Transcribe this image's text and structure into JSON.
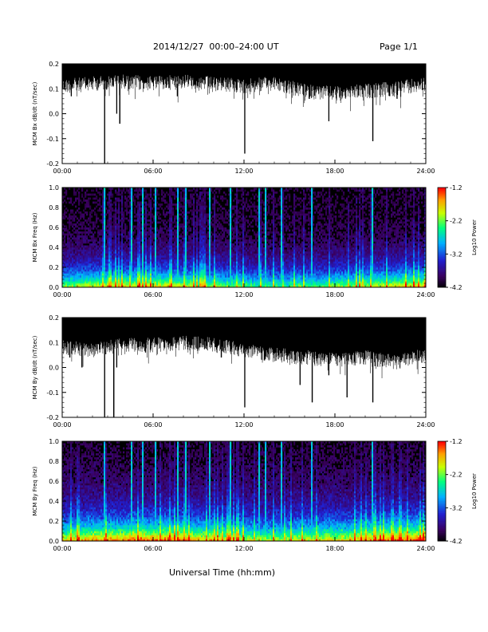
{
  "header": {
    "title": "2014/12/27  00:00–24:00 UT",
    "page": "Page 1/1"
  },
  "footer": {
    "xlabel": "Universal Time (hh:mm)"
  },
  "colors": {
    "trace": "#000000",
    "spectrogram_background": "#000000",
    "colormap": [
      "#000000",
      "#3a0060",
      "#2020d0",
      "#00b0ff",
      "#00ff80",
      "#c8ff00",
      "#ffa000",
      "#ff0000"
    ]
  },
  "chart_data": [
    {
      "type": "line",
      "ylabel": "MCM Bx dB/dt (nT/sec)",
      "xlim": [
        0,
        24
      ],
      "ylim": [
        -0.2,
        0.2
      ],
      "xticks": [
        "00:00",
        "06:00",
        "12:00",
        "18:00",
        "24:00"
      ],
      "yticks": [
        "-0.2",
        "-0.1",
        "0.0",
        "0.1",
        "0.2"
      ],
      "envelope_upper": 0.2,
      "envelope_lower_baseline": [
        [
          0,
          0.14
        ],
        [
          2,
          0.15
        ],
        [
          4,
          0.16
        ],
        [
          6,
          0.15
        ],
        [
          8,
          0.16
        ],
        [
          10,
          0.15
        ],
        [
          12,
          0.14
        ],
        [
          14,
          0.15
        ],
        [
          16,
          0.12
        ],
        [
          18,
          0.11
        ],
        [
          20,
          0.12
        ],
        [
          22,
          0.13
        ],
        [
          24,
          0.15
        ]
      ],
      "spikes": [
        [
          0.6,
          0.07
        ],
        [
          2.8,
          -0.2
        ],
        [
          3.6,
          0.0
        ],
        [
          3.8,
          -0.04
        ],
        [
          7.6,
          0.07
        ],
        [
          12.05,
          -0.16
        ],
        [
          16.3,
          0.06
        ],
        [
          17.6,
          -0.03
        ],
        [
          20.5,
          -0.11
        ],
        [
          22.1,
          0.06
        ]
      ]
    },
    {
      "type": "heatmap",
      "ylabel": "MCM Bx Freq (Hz)",
      "xlim": [
        0,
        24
      ],
      "ylim": [
        0,
        1.0
      ],
      "xticks": [
        "00:00",
        "06:00",
        "12:00",
        "18:00",
        "24:00"
      ],
      "yticks": [
        "0.0",
        "0.2",
        "0.4",
        "0.6",
        "0.8",
        "1.0"
      ],
      "colorbar_label": "Log10 Power",
      "colorbar_ticks": [
        "-1.2",
        "-2.2",
        "-3.2",
        "-4.2"
      ],
      "clim": [
        -4.2,
        -1.2
      ],
      "vertical_bands_hours": [
        2.7,
        4.5,
        5.3,
        6.1,
        7.6,
        8.1,
        9.7,
        11.1,
        12.9,
        13.4,
        14.4,
        16.4,
        20.4
      ]
    },
    {
      "type": "line",
      "ylabel": "MCM By dB/dt (nT/sec)",
      "xlim": [
        0,
        24
      ],
      "ylim": [
        -0.2,
        0.2
      ],
      "xticks": [
        "00:00",
        "06:00",
        "12:00",
        "18:00",
        "24:00"
      ],
      "yticks": [
        "-0.2",
        "-0.1",
        "0.0",
        "0.1",
        "0.2"
      ],
      "envelope_upper": 0.2,
      "envelope_lower_baseline": [
        [
          0,
          0.11
        ],
        [
          2,
          0.1
        ],
        [
          4,
          0.12
        ],
        [
          6,
          0.12
        ],
        [
          8,
          0.13
        ],
        [
          10,
          0.12
        ],
        [
          12,
          0.1
        ],
        [
          14,
          0.08
        ],
        [
          16,
          0.07
        ],
        [
          18,
          0.06
        ],
        [
          20,
          0.07
        ],
        [
          22,
          0.05
        ],
        [
          24,
          0.08
        ]
      ],
      "spikes": [
        [
          0.5,
          0.04
        ],
        [
          1.3,
          0.0
        ],
        [
          2.8,
          -0.2
        ],
        [
          3.4,
          -0.2
        ],
        [
          3.6,
          0.0
        ],
        [
          5.5,
          0.06
        ],
        [
          10.5,
          0.04
        ],
        [
          12.05,
          -0.16
        ],
        [
          15.7,
          -0.07
        ],
        [
          16.5,
          -0.14
        ],
        [
          17.6,
          -0.03
        ],
        [
          18.8,
          -0.12
        ],
        [
          20.5,
          -0.14
        ],
        [
          21.3,
          0.03
        ]
      ]
    },
    {
      "type": "heatmap",
      "ylabel": "MCM By Freq (Hz)",
      "xlim": [
        0,
        24
      ],
      "ylim": [
        0,
        1.0
      ],
      "xticks": [
        "00:00",
        "06:00",
        "12:00",
        "18:00",
        "24:00"
      ],
      "yticks": [
        "0.0",
        "0.2",
        "0.4",
        "0.6",
        "0.8",
        "1.0"
      ],
      "colorbar_label": "Log10 Power",
      "colorbar_ticks": [
        "-1.2",
        "-2.2",
        "-3.2",
        "-4.2"
      ],
      "clim": [
        -4.2,
        -1.2
      ],
      "vertical_bands_hours": [
        2.7,
        4.5,
        5.3,
        6.1,
        7.6,
        8.1,
        9.7,
        11.1,
        12.9,
        13.4,
        14.4,
        16.4,
        20.4
      ]
    }
  ]
}
